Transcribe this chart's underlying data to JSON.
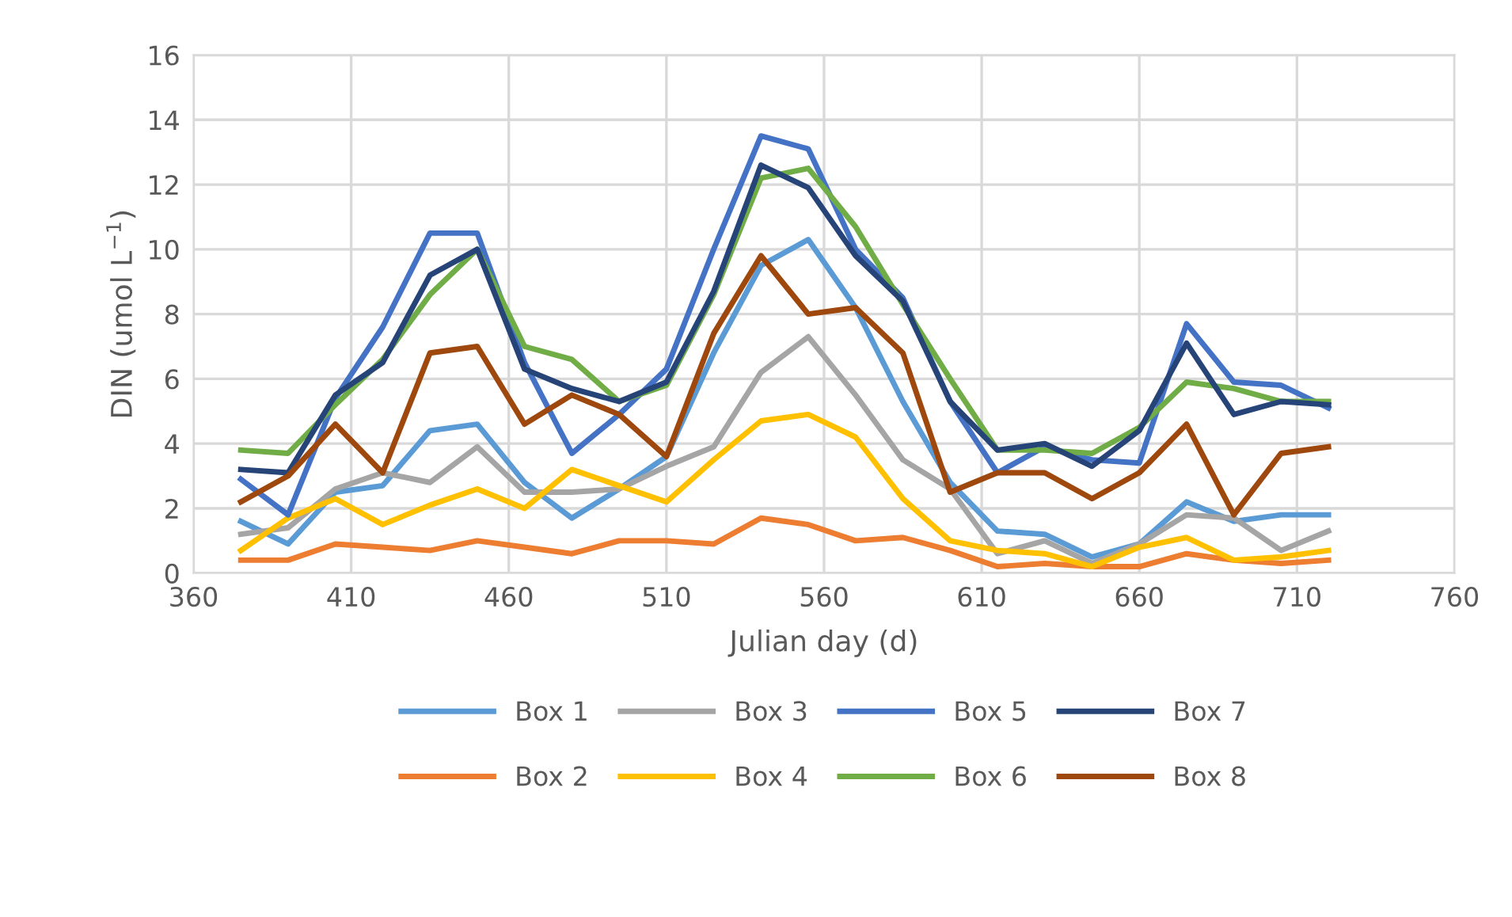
{
  "chart_data": {
    "type": "line",
    "xlabel": "Julian day (d)",
    "ylabel": "DIN (umol L$^{−1}$)",
    "x": [
      375,
      390,
      405,
      420,
      435,
      450,
      465,
      480,
      495,
      510,
      525,
      540,
      555,
      570,
      585,
      600,
      615,
      630,
      645,
      660,
      675,
      690,
      705,
      720
    ],
    "xlim": [
      360,
      760
    ],
    "xticks": [
      360,
      410,
      460,
      510,
      560,
      610,
      660,
      710,
      760
    ],
    "ylim": [
      0,
      16
    ],
    "yticks": [
      0,
      2,
      4,
      6,
      8,
      10,
      12,
      14,
      16
    ],
    "grid": true,
    "legend": "bottom",
    "marker": "none",
    "line_style": "solid",
    "series": [
      {
        "name": "Box 1",
        "color": "#5b9bd5",
        "values": [
          1.6,
          0.9,
          2.5,
          2.7,
          4.4,
          4.6,
          2.8,
          1.7,
          2.6,
          3.6,
          6.8,
          9.5,
          10.3,
          8.2,
          5.3,
          2.8,
          1.3,
          1.2,
          0.5,
          0.9,
          2.2,
          1.6,
          1.8,
          1.8
        ]
      },
      {
        "name": "Box 2",
        "color": "#ed7d31",
        "values": [
          0.4,
          0.4,
          0.9,
          0.8,
          0.7,
          1.0,
          0.8,
          0.6,
          1.0,
          1.0,
          0.9,
          1.7,
          1.5,
          1.0,
          1.1,
          0.7,
          0.2,
          0.3,
          0.2,
          0.2,
          0.6,
          0.4,
          0.3,
          0.4
        ]
      },
      {
        "name": "Box 3",
        "color": "#a5a5a5",
        "values": [
          1.2,
          1.4,
          2.6,
          3.1,
          2.8,
          3.9,
          2.5,
          2.5,
          2.6,
          3.3,
          3.9,
          6.2,
          7.3,
          5.5,
          3.5,
          2.6,
          0.6,
          1.0,
          0.3,
          0.9,
          1.8,
          1.7,
          0.7,
          1.3
        ]
      },
      {
        "name": "Box 4",
        "color": "#ffc000",
        "values": [
          0.7,
          1.7,
          2.3,
          1.5,
          2.1,
          2.6,
          2.0,
          3.2,
          2.7,
          2.2,
          3.5,
          4.7,
          4.9,
          4.2,
          2.3,
          1.0,
          0.7,
          0.6,
          0.2,
          0.8,
          1.1,
          0.4,
          0.5,
          0.7
        ]
      },
      {
        "name": "Box 5",
        "color": "#4472c4",
        "values": [
          2.9,
          1.8,
          5.4,
          7.6,
          10.5,
          10.5,
          6.5,
          3.7,
          4.9,
          6.3,
          10.0,
          13.5,
          13.1,
          10.0,
          8.5,
          5.3,
          3.1,
          3.9,
          3.5,
          3.4,
          7.7,
          5.9,
          5.8,
          5.1
        ]
      },
      {
        "name": "Box 6",
        "color": "#70ad47",
        "values": [
          3.8,
          3.7,
          5.2,
          6.6,
          8.6,
          10.0,
          7.0,
          6.6,
          5.3,
          5.8,
          8.6,
          12.2,
          12.5,
          10.7,
          8.3,
          6.0,
          3.8,
          3.8,
          3.7,
          4.5,
          5.9,
          5.7,
          5.3,
          5.3
        ]
      },
      {
        "name": "Box 7",
        "color": "#264478",
        "values": [
          3.2,
          3.1,
          5.5,
          6.5,
          9.2,
          10.0,
          6.3,
          5.7,
          5.3,
          5.9,
          8.7,
          12.6,
          11.9,
          9.8,
          8.4,
          5.3,
          3.8,
          4.0,
          3.3,
          4.4,
          7.1,
          4.9,
          5.3,
          5.2
        ]
      },
      {
        "name": "Box 8",
        "color": "#9e480e",
        "values": [
          2.2,
          3.0,
          4.6,
          3.1,
          6.8,
          7.0,
          4.6,
          5.5,
          4.9,
          3.6,
          7.4,
          9.8,
          8.0,
          8.2,
          6.8,
          2.5,
          3.1,
          3.1,
          2.3,
          3.1,
          4.6,
          1.8,
          3.7,
          3.9
        ]
      }
    ]
  }
}
